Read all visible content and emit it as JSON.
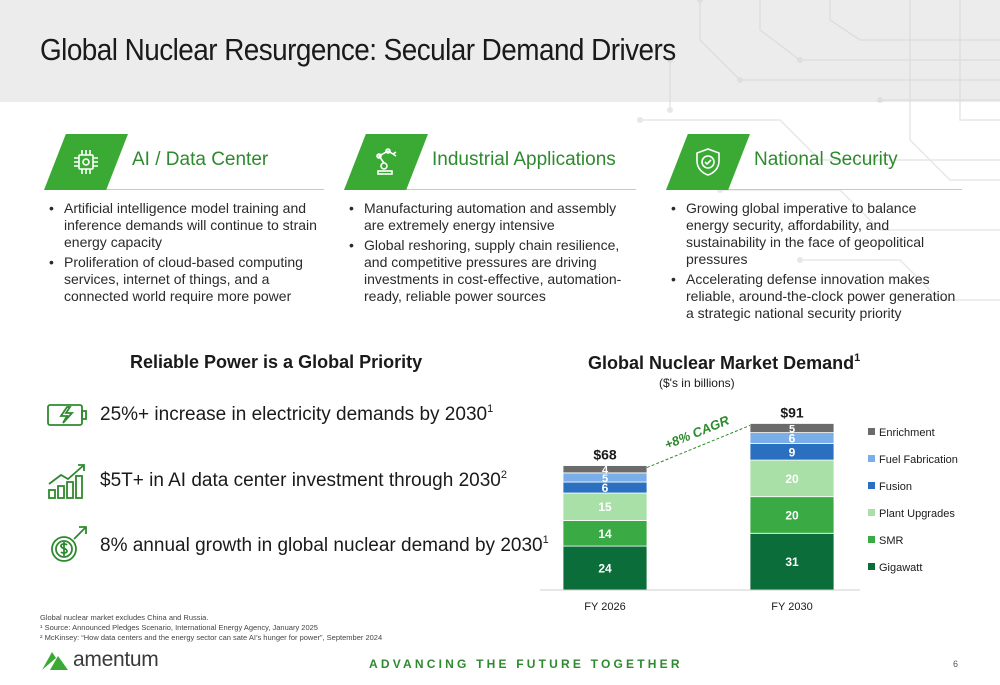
{
  "slide": {
    "title": "Global Nuclear Resurgence: Secular Demand Drivers",
    "tagline": "ADVANCING THE FUTURE TOGETHER",
    "page_number": "6",
    "brand": "amentum",
    "brand_color": "#3aaa35"
  },
  "pillars": [
    {
      "title": "AI / Data Center",
      "icon": "cpu-chip-icon",
      "bullets": [
        "Artificial intelligence model training and inference demands will continue to strain energy capacity",
        "Proliferation of cloud-based computing services, internet of things, and a connected world require more power"
      ]
    },
    {
      "title": "Industrial Applications",
      "icon": "robotic-arm-icon",
      "bullets": [
        "Manufacturing automation and assembly are extremely energy intensive",
        "Global reshoring, supply chain resilience, and competitive pressures are driving investments in cost-effective, automation-ready, reliable power sources"
      ]
    },
    {
      "title": "National Security",
      "icon": "shield-check-icon",
      "bullets": [
        "Growing global imperative to balance energy security, affordability, and sustainability in the face of geopolitical pressures",
        "Accelerating defense innovation makes reliable, around-the-clock power generation a strategic national security priority"
      ]
    }
  ],
  "priority": {
    "title": "Reliable Power is a Global Priority",
    "stats": [
      {
        "text": "25%+ increase in electricity demands by 2030",
        "sup": "1",
        "icon": "battery-charging-icon"
      },
      {
        "text": "$5T+ in AI data center investment through 2030",
        "sup": "2",
        "icon": "growth-bar-chart-icon"
      },
      {
        "text": "8% annual growth in global nuclear demand by 2030",
        "sup": "1",
        "icon": "dollar-growth-icon"
      }
    ]
  },
  "chart_data": {
    "type": "bar",
    "stacked": true,
    "title": "Global Nuclear Market Demand",
    "title_sup": "1",
    "subtitle": "($'s in billions)",
    "categories": [
      "FY 2026",
      "FY 2030"
    ],
    "totals": [
      "$68",
      "$91"
    ],
    "annotation": "+8% CAGR",
    "legend_position": "right",
    "series": [
      {
        "name": "Gigawatt",
        "values": [
          24,
          31
        ],
        "color": "#0b6e3a"
      },
      {
        "name": "SMR",
        "values": [
          14,
          20
        ],
        "color": "#3aaa45"
      },
      {
        "name": "Plant Upgrades",
        "values": [
          15,
          20
        ],
        "color": "#a8e0a8"
      },
      {
        "name": "Fusion",
        "values": [
          6,
          9
        ],
        "color": "#2a6fc0"
      },
      {
        "name": "Fuel Fabrication",
        "values": [
          5,
          6
        ],
        "color": "#7aaee8"
      },
      {
        "name": "Enrichment",
        "values": [
          4,
          5
        ],
        "color": "#6b6b6b"
      }
    ]
  },
  "footnotes": [
    "Global nuclear market excludes China and Russia.",
    "¹ Source: Announced Pledges Scenario, International Energy Agency, January 2025",
    "² McKinsey: “How data centers and the energy sector can sate AI’s hunger for power”, September 2024"
  ]
}
